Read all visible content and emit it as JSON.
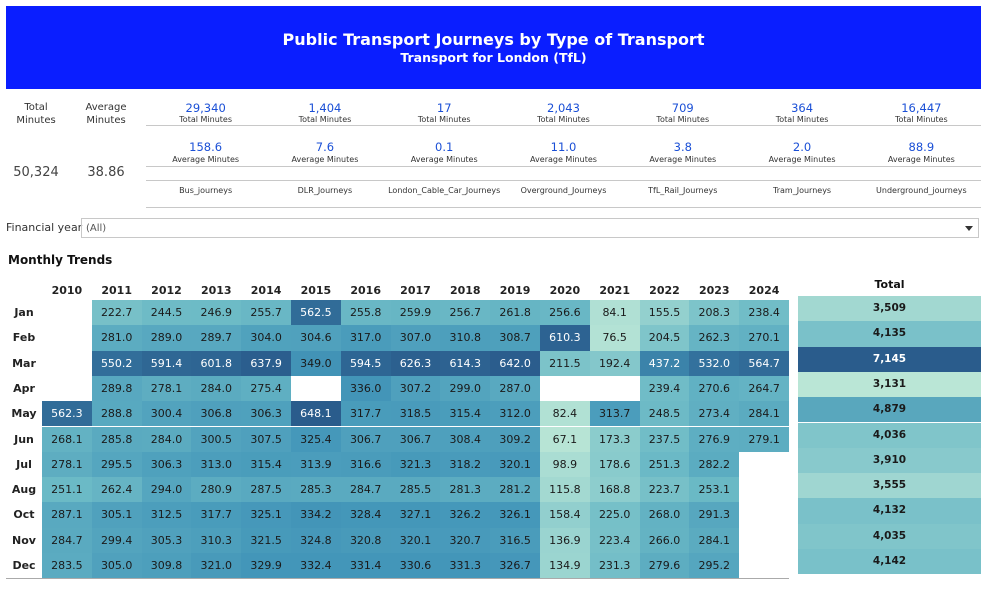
{
  "header": {
    "title": "Public Transport Journeys by Type of Transport",
    "subtitle": "Transport for London (TfL)"
  },
  "summary": {
    "total_label": "Total\nMinutes",
    "total_label_1": "Total",
    "total_label_2": "Minutes",
    "avg_label_1": "Average",
    "avg_label_2": "Minutes",
    "total_value": "50,324",
    "avg_value": "38.86"
  },
  "kpis": [
    {
      "total": "29,340",
      "average": "158.6",
      "name": "Bus_journeys"
    },
    {
      "total": "1,404",
      "average": "7.6",
      "name": "DLR_Journeys"
    },
    {
      "total": "17",
      "average": "0.1",
      "name": "London_Cable_Car_Journeys"
    },
    {
      "total": "2,043",
      "average": "11.0",
      "name": "Overground_Journeys"
    },
    {
      "total": "709",
      "average": "3.8",
      "name": "TfL_Rail_Journeys"
    },
    {
      "total": "364",
      "average": "2.0",
      "name": "Tram_Journeys"
    },
    {
      "total": "16,447",
      "average": "88.9",
      "name": "Underground_journeys"
    }
  ],
  "kpi_total_caption": "Total Minutes",
  "kpi_avg_caption": "Average Minutes",
  "filter": {
    "label": "Financial year",
    "value": "(All)"
  },
  "section_title": "Monthly Trends",
  "chart_data": {
    "type": "heatmap",
    "title": "Monthly Trends",
    "x": [
      "2010",
      "2011",
      "2012",
      "2013",
      "2014",
      "2015",
      "2016",
      "2017",
      "2018",
      "2019",
      "2020",
      "2021",
      "2022",
      "2023",
      "2024"
    ],
    "y": [
      "Jan",
      "Feb",
      "Mar",
      "Apr",
      "May",
      "Jun",
      "Jul",
      "Aug",
      "Oct",
      "Nov",
      "Dec"
    ],
    "values": [
      [
        null,
        222.7,
        244.5,
        246.9,
        255.7,
        562.5,
        255.8,
        259.9,
        256.7,
        261.8,
        256.6,
        84.1,
        155.5,
        208.3,
        238.4
      ],
      [
        null,
        281.0,
        289.0,
        289.7,
        304.0,
        304.6,
        317.0,
        307.0,
        310.8,
        308.7,
        610.3,
        76.5,
        204.5,
        262.3,
        270.1
      ],
      [
        null,
        550.2,
        591.4,
        601.8,
        637.9,
        349.0,
        594.5,
        626.3,
        614.3,
        642.0,
        211.5,
        192.4,
        437.2,
        532.0,
        564.7
      ],
      [
        null,
        289.8,
        278.1,
        284.0,
        275.4,
        null,
        336.0,
        307.2,
        299.0,
        287.0,
        null,
        null,
        239.4,
        270.6,
        264.7
      ],
      [
        562.3,
        288.8,
        300.4,
        306.8,
        306.3,
        648.1,
        317.7,
        318.5,
        315.4,
        312.0,
        82.4,
        313.7,
        248.5,
        273.4,
        284.1
      ],
      [
        268.1,
        285.8,
        284.0,
        300.5,
        307.5,
        325.4,
        306.7,
        306.7,
        308.4,
        309.2,
        67.1,
        173.3,
        237.5,
        276.9,
        279.1
      ],
      [
        278.1,
        295.5,
        306.3,
        313.0,
        315.4,
        313.9,
        316.6,
        321.3,
        318.2,
        320.1,
        98.9,
        178.6,
        251.3,
        282.2,
        null
      ],
      [
        251.1,
        262.4,
        294.0,
        280.9,
        287.5,
        285.3,
        284.7,
        285.5,
        281.3,
        281.2,
        115.8,
        168.8,
        223.7,
        253.1,
        null
      ],
      [
        287.1,
        305.1,
        312.5,
        317.7,
        325.1,
        334.2,
        328.4,
        327.1,
        326.2,
        326.1,
        158.4,
        225.0,
        268.0,
        291.3,
        null
      ],
      [
        284.7,
        299.4,
        305.3,
        310.3,
        321.5,
        324.8,
        320.8,
        320.1,
        320.7,
        316.5,
        136.9,
        223.4,
        266.0,
        284.1,
        null
      ],
      [
        283.5,
        305.0,
        309.8,
        321.0,
        329.9,
        332.4,
        331.4,
        330.6,
        331.3,
        326.7,
        134.9,
        231.3,
        279.6,
        295.2,
        null
      ]
    ],
    "totals_label": "Total",
    "totals": [
      "3,509",
      "4,135",
      "7,145",
      "3,131",
      "4,879",
      "4,036",
      "3,910",
      "3,555",
      "4,132",
      "4,035",
      "4,142"
    ],
    "totals_values": [
      3509,
      4135,
      7145,
      3131,
      4879,
      4036,
      3910,
      3555,
      4132,
      4035,
      4142
    ]
  }
}
